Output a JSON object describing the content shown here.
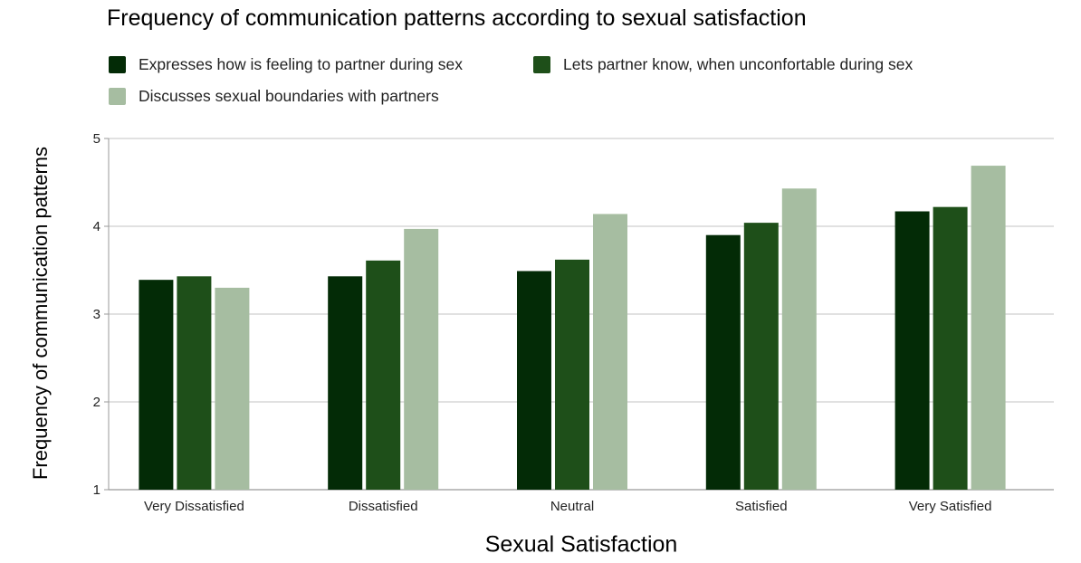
{
  "chart_data": {
    "type": "bar",
    "title": "Frequency of communication patterns according to sexual satisfaction",
    "xlabel": "Sexual Satisfaction",
    "ylabel": "Frequency of communication patterns",
    "categories": [
      "Very Dissatisfied",
      "Dissatisfied",
      "Neutral",
      "Satisfied",
      "Very Satisfied"
    ],
    "series": [
      {
        "name": "Expresses how is feeling to partner during sex",
        "color": "#032b06",
        "values": [
          3.39,
          3.43,
          3.49,
          3.9,
          4.17
        ]
      },
      {
        "name": "Lets partner know, when unconfortable during sex",
        "color": "#1e4f19",
        "values": [
          3.43,
          3.61,
          3.62,
          4.04,
          4.22
        ]
      },
      {
        "name": "Discusses sexual boundaries with partners",
        "color": "#a6bda1",
        "values": [
          3.3,
          3.97,
          4.14,
          4.43,
          4.69
        ]
      }
    ],
    "ylim": [
      1,
      5
    ],
    "yticks": [
      "1",
      "2",
      "3",
      "4",
      "5"
    ],
    "grid": true,
    "legend_position": "top"
  }
}
